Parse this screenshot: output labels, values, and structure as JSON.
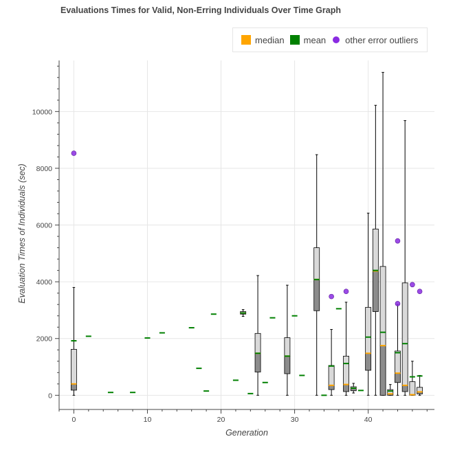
{
  "colors": {
    "median": "#ffa500",
    "mean": "#008000",
    "outlier": "#8a2be2",
    "box_upper": "#d9d9d9",
    "box_lower": "#8c8c8c",
    "grid": "#e6e6e6",
    "axis": "#444444"
  },
  "chart_data": {
    "type": "box",
    "title": "Evaluations Times for Valid, Non-Erring Individuals Over Time Graph",
    "xlabel": "Generation",
    "ylabel": "Evaluation Times of Individuals (sec)",
    "xlim": [
      -2,
      49
    ],
    "ylim": [
      -500,
      11800
    ],
    "xticks": [
      0,
      10,
      20,
      30,
      40
    ],
    "yticks": [
      0,
      2000,
      4000,
      6000,
      8000,
      10000
    ],
    "grid": true,
    "legend_position": "top-right",
    "legend": [
      {
        "label": "median",
        "marker": "square",
        "color": "#ffa500"
      },
      {
        "label": "mean",
        "marker": "square",
        "color": "#008000"
      },
      {
        "label": "other error outliers",
        "marker": "circle",
        "color": "#8a2be2"
      }
    ],
    "boxes": [
      {
        "x": 0,
        "min": 0,
        "q1": 180,
        "median": 400,
        "q3": 1620,
        "max": 3800,
        "mean": 1920
      },
      {
        "x": 23,
        "min": 2780,
        "q1": 2860,
        "median": 2900,
        "q3": 2950,
        "max": 3020,
        "mean": 2900
      },
      {
        "x": 25,
        "min": 0,
        "q1": 820,
        "median": 1480,
        "q3": 2180,
        "max": 4220,
        "mean": 1480
      },
      {
        "x": 29,
        "min": 0,
        "q1": 760,
        "median": 1380,
        "q3": 2030,
        "max": 3880,
        "mean": 1380
      },
      {
        "x": 33,
        "min": 0,
        "q1": 2980,
        "median": 4080,
        "q3": 5200,
        "max": 8480,
        "mean": 4080
      },
      {
        "x": 35,
        "min": 0,
        "q1": 200,
        "median": 350,
        "q3": 1050,
        "max": 2320,
        "mean": 1030
      },
      {
        "x": 37,
        "min": 0,
        "q1": 130,
        "median": 380,
        "q3": 1380,
        "max": 3280,
        "mean": 1120
      },
      {
        "x": 38,
        "min": 80,
        "q1": 160,
        "median": 250,
        "q3": 300,
        "max": 420,
        "mean": 250
      },
      {
        "x": 40,
        "min": 0,
        "q1": 880,
        "median": 1480,
        "q3": 3100,
        "max": 6420,
        "mean": 2050
      },
      {
        "x": 41,
        "min": 0,
        "q1": 2950,
        "median": 4380,
        "q3": 5860,
        "max": 10220,
        "mean": 4400
      },
      {
        "x": 42,
        "min": 0,
        "q1": 0,
        "median": 1750,
        "q3": 4540,
        "max": 11380,
        "mean": 2220
      },
      {
        "x": 43,
        "min": 0,
        "q1": 0,
        "median": 50,
        "q3": 200,
        "max": 380,
        "mean": 150
      },
      {
        "x": 44,
        "min": 0,
        "q1": 450,
        "median": 780,
        "q3": 1560,
        "max": 3200,
        "mean": 1500
      },
      {
        "x": 45,
        "min": 0,
        "q1": 130,
        "median": 350,
        "q3": 3960,
        "max": 9680,
        "mean": 1820
      },
      {
        "x": 46,
        "min": 0,
        "q1": 0,
        "median": 20,
        "q3": 480,
        "max": 1200,
        "mean": 650
      },
      {
        "x": 47,
        "min": 0,
        "q1": 50,
        "median": 120,
        "q3": 280,
        "max": 700,
        "mean": 680
      }
    ],
    "single_means": [
      {
        "x": 2,
        "mean": 2080
      },
      {
        "x": 5,
        "mean": 100
      },
      {
        "x": 8,
        "mean": 100
      },
      {
        "x": 10,
        "mean": 2020
      },
      {
        "x": 12,
        "mean": 2200
      },
      {
        "x": 16,
        "mean": 2380
      },
      {
        "x": 17,
        "mean": 950
      },
      {
        "x": 18,
        "mean": 150
      },
      {
        "x": 19,
        "mean": 2860
      },
      {
        "x": 22,
        "mean": 530
      },
      {
        "x": 24,
        "mean": 60
      },
      {
        "x": 26,
        "mean": 450
      },
      {
        "x": 27,
        "mean": 2730
      },
      {
        "x": 30,
        "mean": 2800
      },
      {
        "x": 31,
        "mean": 700
      },
      {
        "x": 34,
        "mean": 0
      },
      {
        "x": 36,
        "mean": 3050
      },
      {
        "x": 39,
        "mean": 170
      }
    ],
    "outliers": [
      {
        "x": 0,
        "y": 8530
      },
      {
        "x": 35,
        "y": 3480
      },
      {
        "x": 37,
        "y": 3660
      },
      {
        "x": 44,
        "y": 5440
      },
      {
        "x": 44,
        "y": 3230
      },
      {
        "x": 46,
        "y": 3900
      },
      {
        "x": 47,
        "y": 3660
      }
    ]
  }
}
